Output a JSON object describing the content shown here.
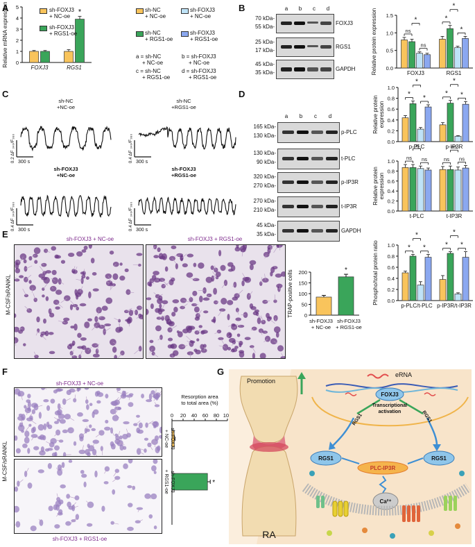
{
  "panel_labels": {
    "A": "A",
    "B": "B",
    "C": "C",
    "D": "D",
    "E": "E",
    "F": "F",
    "G": "G"
  },
  "colors": {
    "nc": "#f9c45c",
    "rgs1": "#3aa55a",
    "shnc": "#f9c45c",
    "shfoxj3_nc": "#bfe3f7",
    "shnc_rgs1": "#3aa55a",
    "shfoxj3_rgs1": "#8ba8f0",
    "purple": "#7d2a8c"
  },
  "panelA": {
    "legend": {
      "nc": "sh-FOXJ3\n+ NC-oe",
      "rgs1": "sh-FOXJ3\n+ RGS1-oe"
    },
    "ylabel": "Relative mRNA expression",
    "star": "*"
  },
  "legendTop": {
    "a": "sh-NC\n+ NC-oe",
    "b": "sh-FOXJ3\n+ NC-oe",
    "c": "sh-NC\n+ RGS1-oe",
    "d": "sh-FOXJ3\n+ RGS1-oe",
    "key": [
      "a = sh-NC",
      "b = sh-FOXJ3",
      "+ NC-oe",
      "+ NC-oe",
      "c = sh-NC",
      "d = sh-FOXJ3",
      "+ RGS1-oe",
      "+ RGS1-oe"
    ]
  },
  "blotB": {
    "lanes": [
      "a",
      "b",
      "c",
      "d"
    ],
    "rows": [
      {
        "name": "FOXJ3",
        "markers": [
          "70 kDa-",
          "55 kDa-"
        ]
      },
      {
        "name": "RGS1",
        "markers": [
          "25 kDa-",
          "17 kDa-"
        ]
      },
      {
        "name": "GAPDH",
        "markers": [
          "45 kDa-",
          "35 kDa-"
        ]
      }
    ]
  },
  "blotD": {
    "lanes": [
      "a",
      "b",
      "c",
      "d"
    ],
    "rows": [
      {
        "name": "p-PLC",
        "markers": [
          "165 kDa-",
          "130 kDa-"
        ]
      },
      {
        "name": "t-PLC",
        "markers": [
          "130 kDa-",
          "90 kDa-"
        ]
      },
      {
        "name": "p-IP3R",
        "markers": [
          "320 kDa-",
          "270 kDa-"
        ]
      },
      {
        "name": "t-IP3R",
        "markers": [
          "270 kDa-",
          "210 kDa-"
        ]
      },
      {
        "name": "GAPDH",
        "markers": [
          "45 kDa-",
          "35 kDa-"
        ]
      }
    ]
  },
  "panelC": {
    "traces": [
      {
        "title": "sh-NC\n+NC-oe",
        "scale": "0.2 ΔF ₃₄₀/F₃₈₀",
        "time": "300 s"
      },
      {
        "title": "sh-NC\n+RGS1-oe",
        "scale": "0.4 ΔF ₃₄₀/F₃₈₀",
        "time": "300 s"
      },
      {
        "title": "sh-FOXJ3\n+NC-oe",
        "scale": "0.4 ΔF ₃₄₀/F₃₈₀",
        "time": "300 s"
      },
      {
        "title": "sh-FOXJ3\n+RGS1-oe",
        "scale": "0.4 ΔF ₃₄₀/F₃₈₀",
        "time": "300 s"
      }
    ]
  },
  "panelE": {
    "img_titles": [
      "sh-FOXJ3 + NC-oe",
      "sh-FOXJ3 + RGS1-oe"
    ],
    "side_label": "M-CSF/sRANKL",
    "ylabel": "TRAP-positive cells",
    "xlabels": [
      "sh-FOXJ3\n+ NC-oe",
      "sh-FOXJ3\n+ RGS1-oe"
    ],
    "star": "*"
  },
  "panelF": {
    "top_title": "sh-FOXJ3 + NC-oe",
    "bottom_title": "sh-FOXJ3 + RGS1-oe",
    "side_label": "M-CSF/sRANKL",
    "xlabel": "Resorption area\nto total area (%)",
    "cats": [
      "sh-FOXJ3\n+ NC-oe",
      "sh-FOXJ3\n+ RGS1-oe"
    ],
    "star": "*"
  },
  "panelG": {
    "promotion": "Promotion",
    "erna": "eRNA",
    "foxj3": "FOXJ3",
    "transcriptional": "Transcriptional\nactivation",
    "rgs1_left_arrow": "RGS1",
    "rgs1_right_arrow": "RGS1",
    "rgs1_left": "RGS1",
    "rgs1_right": "RGS1",
    "plc": "PLC-IP3R",
    "ca": "Ca²⁺",
    "ra": "RA"
  },
  "chart_data": [
    {
      "type": "bar",
      "id": "A",
      "ylabel": "Relative mRNA expression",
      "categories": [
        "FOXJ3",
        "RGS1"
      ],
      "ylim": [
        0,
        5
      ],
      "yticks": [
        0,
        1,
        2,
        3,
        4,
        5
      ],
      "series": [
        {
          "name": "sh-FOXJ3 + NC-oe",
          "values": [
            1.0,
            1.0
          ],
          "err": [
            0.08,
            0.15
          ]
        },
        {
          "name": "sh-FOXJ3 + RGS1-oe",
          "values": [
            1.0,
            3.9
          ],
          "err": [
            0.08,
            0.25
          ]
        }
      ]
    },
    {
      "type": "bar",
      "id": "B",
      "ylabel": "Relative protein expression",
      "categories": [
        "FOXJ3",
        "RGS1"
      ],
      "ylim": [
        0,
        1.5
      ],
      "yticks": [
        0.0,
        0.5,
        1.0,
        1.5
      ],
      "series": [
        {
          "name": "a",
          "values": [
            0.8,
            0.82
          ],
          "err": [
            0.07,
            0.08
          ]
        },
        {
          "name": "b",
          "values": [
            0.75,
            1.12
          ],
          "err": [
            0.07,
            0.09
          ]
        },
        {
          "name": "c",
          "values": [
            0.42,
            0.58
          ],
          "err": [
            0.04,
            0.04
          ]
        },
        {
          "name": "d",
          "values": [
            0.38,
            0.84
          ],
          "err": [
            0.04,
            0.06
          ]
        }
      ],
      "sig": [
        {
          "cat": 0,
          "pair": [
            0,
            1
          ],
          "label": "ns"
        },
        {
          "cat": 0,
          "pair": [
            1,
            2
          ],
          "label": "*"
        },
        {
          "cat": 0,
          "pair": [
            2,
            3
          ],
          "label": "ns"
        },
        {
          "cat": 1,
          "pair": [
            0,
            1
          ],
          "label": "*"
        },
        {
          "cat": 1,
          "pair": [
            1,
            2
          ],
          "label": "*"
        },
        {
          "cat": 1,
          "pair": [
            2,
            3
          ],
          "label": "*"
        }
      ]
    },
    {
      "type": "bar",
      "id": "D1",
      "ylabel": "Relative protein\nexpression",
      "categories": [
        "p-PLC",
        "p-IP3R"
      ],
      "ylim": [
        0,
        1.0
      ],
      "yticks": [
        0.0,
        0.2,
        0.4,
        0.6,
        0.8,
        1.0
      ],
      "series": [
        {
          "name": "a",
          "values": [
            0.44,
            0.31
          ],
          "err": [
            0.04,
            0.04
          ]
        },
        {
          "name": "b",
          "values": [
            0.7,
            0.71
          ],
          "err": [
            0.05,
            0.05
          ]
        },
        {
          "name": "c",
          "values": [
            0.23,
            0.1
          ],
          "err": [
            0.03,
            0.01
          ]
        },
        {
          "name": "d",
          "values": [
            0.64,
            0.69
          ],
          "err": [
            0.04,
            0.05
          ]
        }
      ],
      "sig": [
        {
          "cat": 0,
          "pair": [
            0,
            1
          ],
          "label": "*"
        },
        {
          "cat": 0,
          "pair": [
            1,
            2
          ],
          "label": "*"
        },
        {
          "cat": 0,
          "pair": [
            2,
            3
          ],
          "label": "*"
        },
        {
          "cat": 1,
          "pair": [
            0,
            1
          ],
          "label": "*"
        },
        {
          "cat": 1,
          "pair": [
            1,
            2
          ],
          "label": "*"
        },
        {
          "cat": 1,
          "pair": [
            2,
            3
          ],
          "label": "*"
        }
      ]
    },
    {
      "type": "bar",
      "id": "D2",
      "ylabel": "Relative protein\nexpression",
      "categories": [
        "t-PLC",
        "t-IP3R"
      ],
      "ylim": [
        0,
        1.0
      ],
      "yticks": [
        0.0,
        0.2,
        0.4,
        0.6,
        0.8,
        1.0
      ],
      "series": [
        {
          "name": "a",
          "values": [
            0.87,
            0.83
          ],
          "err": [
            0.06,
            0.06
          ]
        },
        {
          "name": "b",
          "values": [
            0.87,
            0.83
          ],
          "err": [
            0.06,
            0.07
          ]
        },
        {
          "name": "c",
          "values": [
            0.85,
            0.82
          ],
          "err": [
            0.05,
            0.06
          ]
        },
        {
          "name": "d",
          "values": [
            0.82,
            0.86
          ],
          "err": [
            0.04,
            0.05
          ]
        }
      ],
      "sig": [
        {
          "cat": 0,
          "pair": [
            0,
            1
          ],
          "label": "ns"
        },
        {
          "cat": 0,
          "pair": [
            1,
            2
          ],
          "label": "ns"
        },
        {
          "cat": 0,
          "pair": [
            2,
            3
          ],
          "label": "ns"
        },
        {
          "cat": 1,
          "pair": [
            0,
            1
          ],
          "label": "ns"
        },
        {
          "cat": 1,
          "pair": [
            1,
            2
          ],
          "label": "ns"
        },
        {
          "cat": 1,
          "pair": [
            2,
            3
          ],
          "label": "ns"
        }
      ]
    },
    {
      "type": "bar",
      "id": "D3",
      "ylabel": "Phospho/total protein ratio",
      "categories": [
        "p-PLC/t-PLC",
        "p-IP3R/t-IP3R"
      ],
      "ylim": [
        0,
        1.0
      ],
      "yticks": [
        0.0,
        0.2,
        0.4,
        0.6,
        0.8,
        1.0
      ],
      "series": [
        {
          "name": "a",
          "values": [
            0.5,
            0.38
          ],
          "err": [
            0.03,
            0.07
          ]
        },
        {
          "name": "b",
          "values": [
            0.8,
            0.85
          ],
          "err": [
            0.03,
            0.03
          ]
        },
        {
          "name": "c",
          "values": [
            0.28,
            0.12
          ],
          "err": [
            0.06,
            0.02
          ]
        },
        {
          "name": "d",
          "values": [
            0.78,
            0.78
          ],
          "err": [
            0.05,
            0.1
          ]
        }
      ],
      "sig": [
        {
          "cat": 0,
          "pair": [
            0,
            1
          ],
          "label": "*"
        },
        {
          "cat": 0,
          "pair": [
            1,
            2
          ],
          "label": "*"
        },
        {
          "cat": 0,
          "pair": [
            2,
            3
          ],
          "label": "*"
        },
        {
          "cat": 1,
          "pair": [
            0,
            1
          ],
          "label": "*"
        },
        {
          "cat": 1,
          "pair": [
            1,
            2
          ],
          "label": "*"
        },
        {
          "cat": 1,
          "pair": [
            2,
            3
          ],
          "label": "*"
        }
      ]
    },
    {
      "type": "bar",
      "id": "E",
      "ylabel": "TRAP-positive cells",
      "categories": [
        "sh-FOXJ3 + NC-oe",
        "sh-FOXJ3 + RGS1-oe"
      ],
      "ylim": [
        0,
        200
      ],
      "yticks": [
        0,
        50,
        100,
        150,
        200
      ],
      "series": [
        {
          "name": "TRAP-positive cells",
          "values": [
            84,
            178
          ],
          "err": [
            8,
            12
          ]
        }
      ]
    },
    {
      "type": "bar",
      "id": "F",
      "orientation": "horizontal",
      "xlabel": "Resorption area to total area (%)",
      "categories": [
        "sh-FOXJ3 + NC-oe",
        "sh-FOXJ3 + RGS1-oe"
      ],
      "xlim": [
        0,
        100
      ],
      "xticks": [
        0,
        20,
        40,
        60,
        80,
        100
      ],
      "series": [
        {
          "name": "Resorption area",
          "values": [
            4,
            64
          ],
          "err": [
            1.5,
            5
          ]
        }
      ]
    }
  ]
}
